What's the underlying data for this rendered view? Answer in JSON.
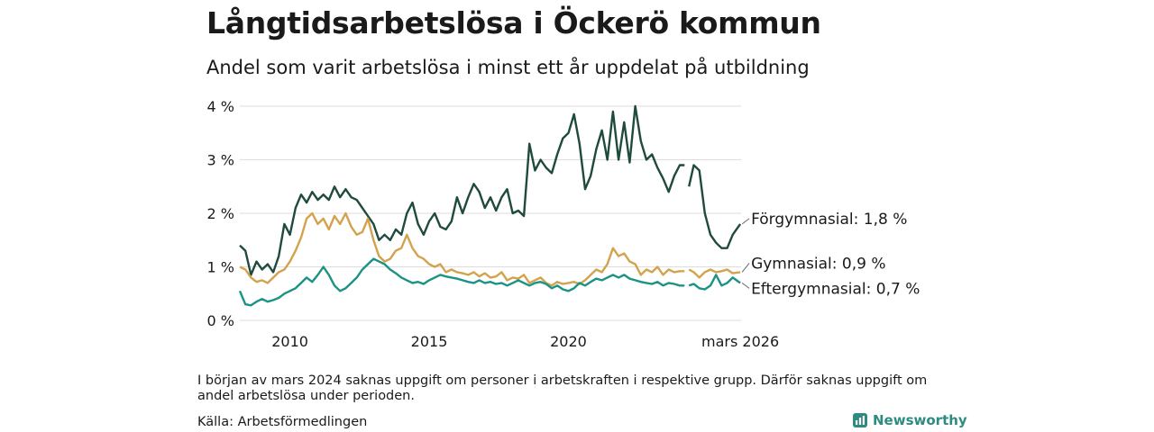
{
  "title": "Långtidsarbetslösa i Öckerö kommun",
  "subtitle": "Andel som varit arbetslösa i minst ett år uppdelat på utbildning",
  "footnote": "I början av mars 2024 saknas uppgift om personer i arbetskraften i respektive grupp. Därför saknas uppgift om andel arbetslösa under perioden.",
  "source": "Källa: Arbetsförmedlingen",
  "brand": "Newsworthy",
  "colors": {
    "forgymnasial": "#1f4a3e",
    "gymnasial": "#d4a24c",
    "eftergymnasial": "#1a9384",
    "grid": "#dddddd",
    "brand": "#2e8b80"
  },
  "chart_data": {
    "type": "line",
    "xlim": [
      2008.2,
      2026.2
    ],
    "ylim": [
      0,
      4
    ],
    "gap": [
      2024.17,
      2024.33
    ],
    "x_ticks": [
      {
        "value": 2010,
        "label": "2010"
      },
      {
        "value": 2015,
        "label": "2015"
      },
      {
        "value": 2020,
        "label": "2020"
      },
      {
        "value": 2026.17,
        "label": "mars 2026"
      }
    ],
    "y_ticks": [
      {
        "value": 0,
        "label": "0 %"
      },
      {
        "value": 1,
        "label": "1 %"
      },
      {
        "value": 2,
        "label": "2 %"
      },
      {
        "value": 3,
        "label": "3 %"
      },
      {
        "value": 4,
        "label": "4 %"
      }
    ],
    "series": [
      {
        "name": "Förgymnasial",
        "end_label": "Förgymnasial: 1,8 %",
        "color": "#1f4a3e",
        "points": [
          [
            2008.2,
            1.4
          ],
          [
            2008.4,
            1.3
          ],
          [
            2008.6,
            0.85
          ],
          [
            2008.8,
            1.1
          ],
          [
            2009.0,
            0.95
          ],
          [
            2009.2,
            1.05
          ],
          [
            2009.4,
            0.9
          ],
          [
            2009.6,
            1.2
          ],
          [
            2009.8,
            1.8
          ],
          [
            2010.0,
            1.6
          ],
          [
            2010.2,
            2.1
          ],
          [
            2010.4,
            2.35
          ],
          [
            2010.6,
            2.2
          ],
          [
            2010.8,
            2.4
          ],
          [
            2011.0,
            2.25
          ],
          [
            2011.2,
            2.35
          ],
          [
            2011.4,
            2.25
          ],
          [
            2011.6,
            2.5
          ],
          [
            2011.8,
            2.3
          ],
          [
            2012.0,
            2.45
          ],
          [
            2012.2,
            2.3
          ],
          [
            2012.4,
            2.25
          ],
          [
            2012.6,
            2.1
          ],
          [
            2012.8,
            1.95
          ],
          [
            2013.0,
            1.8
          ],
          [
            2013.2,
            1.5
          ],
          [
            2013.4,
            1.6
          ],
          [
            2013.6,
            1.5
          ],
          [
            2013.8,
            1.7
          ],
          [
            2014.0,
            1.6
          ],
          [
            2014.2,
            2.0
          ],
          [
            2014.4,
            2.2
          ],
          [
            2014.6,
            1.8
          ],
          [
            2014.8,
            1.6
          ],
          [
            2015.0,
            1.85
          ],
          [
            2015.2,
            2.0
          ],
          [
            2015.4,
            1.75
          ],
          [
            2015.6,
            1.7
          ],
          [
            2015.8,
            1.85
          ],
          [
            2016.0,
            2.3
          ],
          [
            2016.2,
            2.0
          ],
          [
            2016.4,
            2.3
          ],
          [
            2016.6,
            2.55
          ],
          [
            2016.8,
            2.4
          ],
          [
            2017.0,
            2.1
          ],
          [
            2017.2,
            2.3
          ],
          [
            2017.4,
            2.05
          ],
          [
            2017.6,
            2.3
          ],
          [
            2017.8,
            2.45
          ],
          [
            2018.0,
            2.0
          ],
          [
            2018.2,
            2.05
          ],
          [
            2018.4,
            1.95
          ],
          [
            2018.6,
            3.3
          ],
          [
            2018.8,
            2.8
          ],
          [
            2019.0,
            3.0
          ],
          [
            2019.2,
            2.85
          ],
          [
            2019.4,
            2.75
          ],
          [
            2019.6,
            3.1
          ],
          [
            2019.8,
            3.4
          ],
          [
            2020.0,
            3.5
          ],
          [
            2020.2,
            3.85
          ],
          [
            2020.4,
            3.3
          ],
          [
            2020.6,
            2.45
          ],
          [
            2020.8,
            2.7
          ],
          [
            2021.0,
            3.2
          ],
          [
            2021.2,
            3.55
          ],
          [
            2021.4,
            3.0
          ],
          [
            2021.6,
            3.9
          ],
          [
            2021.8,
            3.0
          ],
          [
            2022.0,
            3.7
          ],
          [
            2022.2,
            2.95
          ],
          [
            2022.4,
            4.0
          ],
          [
            2022.6,
            3.35
          ],
          [
            2022.8,
            3.0
          ],
          [
            2023.0,
            3.1
          ],
          [
            2023.2,
            2.85
          ],
          [
            2023.4,
            2.65
          ],
          [
            2023.6,
            2.4
          ],
          [
            2023.8,
            2.7
          ],
          [
            2024.0,
            2.9
          ],
          [
            2024.17,
            2.9
          ],
          [
            2024.33,
            2.5
          ],
          [
            2024.5,
            2.9
          ],
          [
            2024.7,
            2.8
          ],
          [
            2024.9,
            2.0
          ],
          [
            2025.1,
            1.6
          ],
          [
            2025.3,
            1.45
          ],
          [
            2025.5,
            1.35
          ],
          [
            2025.7,
            1.35
          ],
          [
            2025.9,
            1.6
          ],
          [
            2026.17,
            1.8
          ]
        ]
      },
      {
        "name": "Gymnasial",
        "end_label": "Gymnasial: 0,9 %",
        "color": "#d4a24c",
        "points": [
          [
            2008.2,
            1.0
          ],
          [
            2008.4,
            0.95
          ],
          [
            2008.6,
            0.8
          ],
          [
            2008.8,
            0.72
          ],
          [
            2009.0,
            0.75
          ],
          [
            2009.2,
            0.7
          ],
          [
            2009.4,
            0.8
          ],
          [
            2009.6,
            0.9
          ],
          [
            2009.8,
            0.95
          ],
          [
            2010.0,
            1.1
          ],
          [
            2010.2,
            1.3
          ],
          [
            2010.4,
            1.55
          ],
          [
            2010.6,
            1.9
          ],
          [
            2010.8,
            2.0
          ],
          [
            2011.0,
            1.8
          ],
          [
            2011.2,
            1.9
          ],
          [
            2011.4,
            1.7
          ],
          [
            2011.6,
            1.95
          ],
          [
            2011.8,
            1.8
          ],
          [
            2012.0,
            2.0
          ],
          [
            2012.2,
            1.75
          ],
          [
            2012.4,
            1.6
          ],
          [
            2012.6,
            1.65
          ],
          [
            2012.8,
            1.9
          ],
          [
            2013.0,
            1.5
          ],
          [
            2013.2,
            1.2
          ],
          [
            2013.4,
            1.1
          ],
          [
            2013.6,
            1.15
          ],
          [
            2013.8,
            1.3
          ],
          [
            2014.0,
            1.35
          ],
          [
            2014.2,
            1.6
          ],
          [
            2014.4,
            1.35
          ],
          [
            2014.6,
            1.2
          ],
          [
            2014.8,
            1.15
          ],
          [
            2015.0,
            1.05
          ],
          [
            2015.2,
            1.0
          ],
          [
            2015.4,
            1.05
          ],
          [
            2015.6,
            0.9
          ],
          [
            2015.8,
            0.95
          ],
          [
            2016.0,
            0.9
          ],
          [
            2016.2,
            0.88
          ],
          [
            2016.4,
            0.85
          ],
          [
            2016.6,
            0.9
          ],
          [
            2016.8,
            0.82
          ],
          [
            2017.0,
            0.88
          ],
          [
            2017.2,
            0.8
          ],
          [
            2017.4,
            0.82
          ],
          [
            2017.6,
            0.9
          ],
          [
            2017.8,
            0.75
          ],
          [
            2018.0,
            0.8
          ],
          [
            2018.2,
            0.78
          ],
          [
            2018.4,
            0.85
          ],
          [
            2018.6,
            0.7
          ],
          [
            2018.8,
            0.75
          ],
          [
            2019.0,
            0.8
          ],
          [
            2019.2,
            0.7
          ],
          [
            2019.4,
            0.65
          ],
          [
            2019.6,
            0.72
          ],
          [
            2019.8,
            0.68
          ],
          [
            2020.0,
            0.7
          ],
          [
            2020.2,
            0.72
          ],
          [
            2020.4,
            0.68
          ],
          [
            2020.6,
            0.75
          ],
          [
            2020.8,
            0.85
          ],
          [
            2021.0,
            0.95
          ],
          [
            2021.2,
            0.9
          ],
          [
            2021.4,
            1.05
          ],
          [
            2021.6,
            1.35
          ],
          [
            2021.8,
            1.2
          ],
          [
            2022.0,
            1.25
          ],
          [
            2022.2,
            1.1
          ],
          [
            2022.4,
            1.05
          ],
          [
            2022.6,
            0.85
          ],
          [
            2022.8,
            0.95
          ],
          [
            2023.0,
            0.9
          ],
          [
            2023.2,
            1.0
          ],
          [
            2023.4,
            0.85
          ],
          [
            2023.6,
            0.95
          ],
          [
            2023.8,
            0.9
          ],
          [
            2024.0,
            0.92
          ],
          [
            2024.17,
            0.92
          ],
          [
            2024.33,
            0.95
          ],
          [
            2024.5,
            0.9
          ],
          [
            2024.7,
            0.8
          ],
          [
            2024.9,
            0.9
          ],
          [
            2025.1,
            0.95
          ],
          [
            2025.3,
            0.9
          ],
          [
            2025.5,
            0.92
          ],
          [
            2025.7,
            0.95
          ],
          [
            2025.9,
            0.88
          ],
          [
            2026.17,
            0.9
          ]
        ]
      },
      {
        "name": "Eftergymnasial",
        "end_label": "Eftergymnasial: 0,7 %",
        "color": "#1a9384",
        "points": [
          [
            2008.2,
            0.55
          ],
          [
            2008.4,
            0.3
          ],
          [
            2008.6,
            0.28
          ],
          [
            2008.8,
            0.35
          ],
          [
            2009.0,
            0.4
          ],
          [
            2009.2,
            0.35
          ],
          [
            2009.4,
            0.38
          ],
          [
            2009.6,
            0.42
          ],
          [
            2009.8,
            0.5
          ],
          [
            2010.0,
            0.55
          ],
          [
            2010.2,
            0.6
          ],
          [
            2010.4,
            0.7
          ],
          [
            2010.6,
            0.8
          ],
          [
            2010.8,
            0.72
          ],
          [
            2011.0,
            0.85
          ],
          [
            2011.2,
            1.0
          ],
          [
            2011.4,
            0.85
          ],
          [
            2011.6,
            0.65
          ],
          [
            2011.8,
            0.55
          ],
          [
            2012.0,
            0.6
          ],
          [
            2012.2,
            0.7
          ],
          [
            2012.4,
            0.8
          ],
          [
            2012.6,
            0.95
          ],
          [
            2012.8,
            1.05
          ],
          [
            2013.0,
            1.15
          ],
          [
            2013.2,
            1.1
          ],
          [
            2013.4,
            1.05
          ],
          [
            2013.6,
            0.95
          ],
          [
            2013.8,
            0.88
          ],
          [
            2014.0,
            0.8
          ],
          [
            2014.2,
            0.75
          ],
          [
            2014.4,
            0.7
          ],
          [
            2014.6,
            0.72
          ],
          [
            2014.8,
            0.68
          ],
          [
            2015.0,
            0.75
          ],
          [
            2015.2,
            0.8
          ],
          [
            2015.4,
            0.85
          ],
          [
            2015.6,
            0.82
          ],
          [
            2015.8,
            0.8
          ],
          [
            2016.0,
            0.78
          ],
          [
            2016.2,
            0.75
          ],
          [
            2016.4,
            0.72
          ],
          [
            2016.6,
            0.7
          ],
          [
            2016.8,
            0.75
          ],
          [
            2017.0,
            0.7
          ],
          [
            2017.2,
            0.72
          ],
          [
            2017.4,
            0.68
          ],
          [
            2017.6,
            0.7
          ],
          [
            2017.8,
            0.65
          ],
          [
            2018.0,
            0.7
          ],
          [
            2018.2,
            0.75
          ],
          [
            2018.4,
            0.7
          ],
          [
            2018.6,
            0.65
          ],
          [
            2018.8,
            0.7
          ],
          [
            2019.0,
            0.72
          ],
          [
            2019.2,
            0.68
          ],
          [
            2019.4,
            0.6
          ],
          [
            2019.6,
            0.65
          ],
          [
            2019.8,
            0.58
          ],
          [
            2020.0,
            0.55
          ],
          [
            2020.2,
            0.6
          ],
          [
            2020.4,
            0.7
          ],
          [
            2020.6,
            0.65
          ],
          [
            2020.8,
            0.72
          ],
          [
            2021.0,
            0.78
          ],
          [
            2021.2,
            0.75
          ],
          [
            2021.4,
            0.8
          ],
          [
            2021.6,
            0.85
          ],
          [
            2021.8,
            0.8
          ],
          [
            2022.0,
            0.85
          ],
          [
            2022.2,
            0.78
          ],
          [
            2022.4,
            0.75
          ],
          [
            2022.6,
            0.72
          ],
          [
            2022.8,
            0.7
          ],
          [
            2023.0,
            0.68
          ],
          [
            2023.2,
            0.72
          ],
          [
            2023.4,
            0.65
          ],
          [
            2023.6,
            0.7
          ],
          [
            2023.8,
            0.68
          ],
          [
            2024.0,
            0.65
          ],
          [
            2024.17,
            0.65
          ],
          [
            2024.33,
            0.65
          ],
          [
            2024.5,
            0.68
          ],
          [
            2024.7,
            0.6
          ],
          [
            2024.9,
            0.58
          ],
          [
            2025.1,
            0.65
          ],
          [
            2025.3,
            0.85
          ],
          [
            2025.5,
            0.65
          ],
          [
            2025.7,
            0.7
          ],
          [
            2025.9,
            0.8
          ],
          [
            2026.17,
            0.7
          ]
        ]
      }
    ]
  }
}
